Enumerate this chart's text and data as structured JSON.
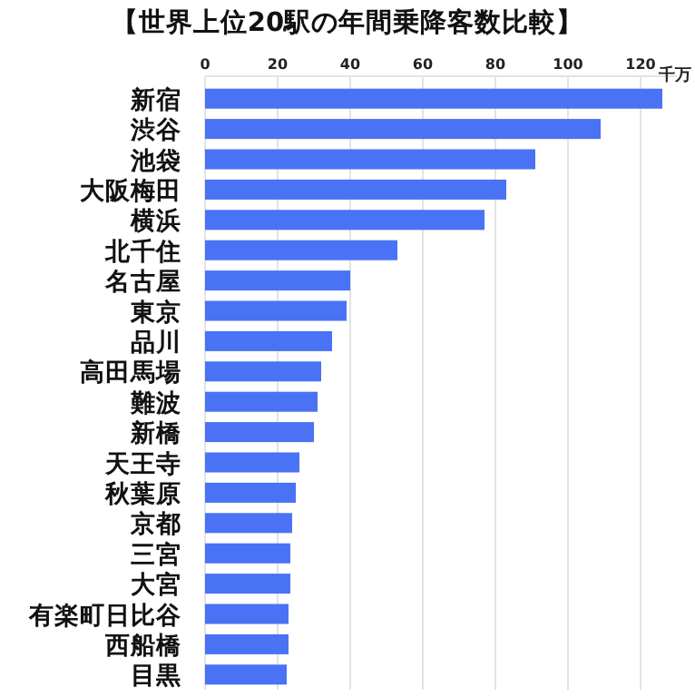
{
  "chart_data": {
    "type": "bar",
    "orientation": "horizontal",
    "title": "【世界上位20駅の年間乗降客数比較】",
    "xlabel": "千万",
    "categories": [
      "新宿",
      "渋谷",
      "池袋",
      "大阪梅田",
      "横浜",
      "北千住",
      "名古屋",
      "東京",
      "品川",
      "高田馬場",
      "難波",
      "新橋",
      "天王寺",
      "秋葉原",
      "京都",
      "三宮",
      "大宮",
      "有楽町日比谷",
      "西船橋",
      "目黒"
    ],
    "values": [
      126,
      109,
      91,
      83,
      77,
      53,
      40,
      39,
      35,
      32,
      31,
      30,
      26,
      25,
      24,
      23.5,
      23.5,
      23,
      23,
      22.5
    ],
    "color": "#4a72f5",
    "xlim": [
      0,
      130
    ],
    "xticks": [
      0,
      20,
      40,
      60,
      80,
      100,
      120
    ],
    "grid": "x"
  }
}
